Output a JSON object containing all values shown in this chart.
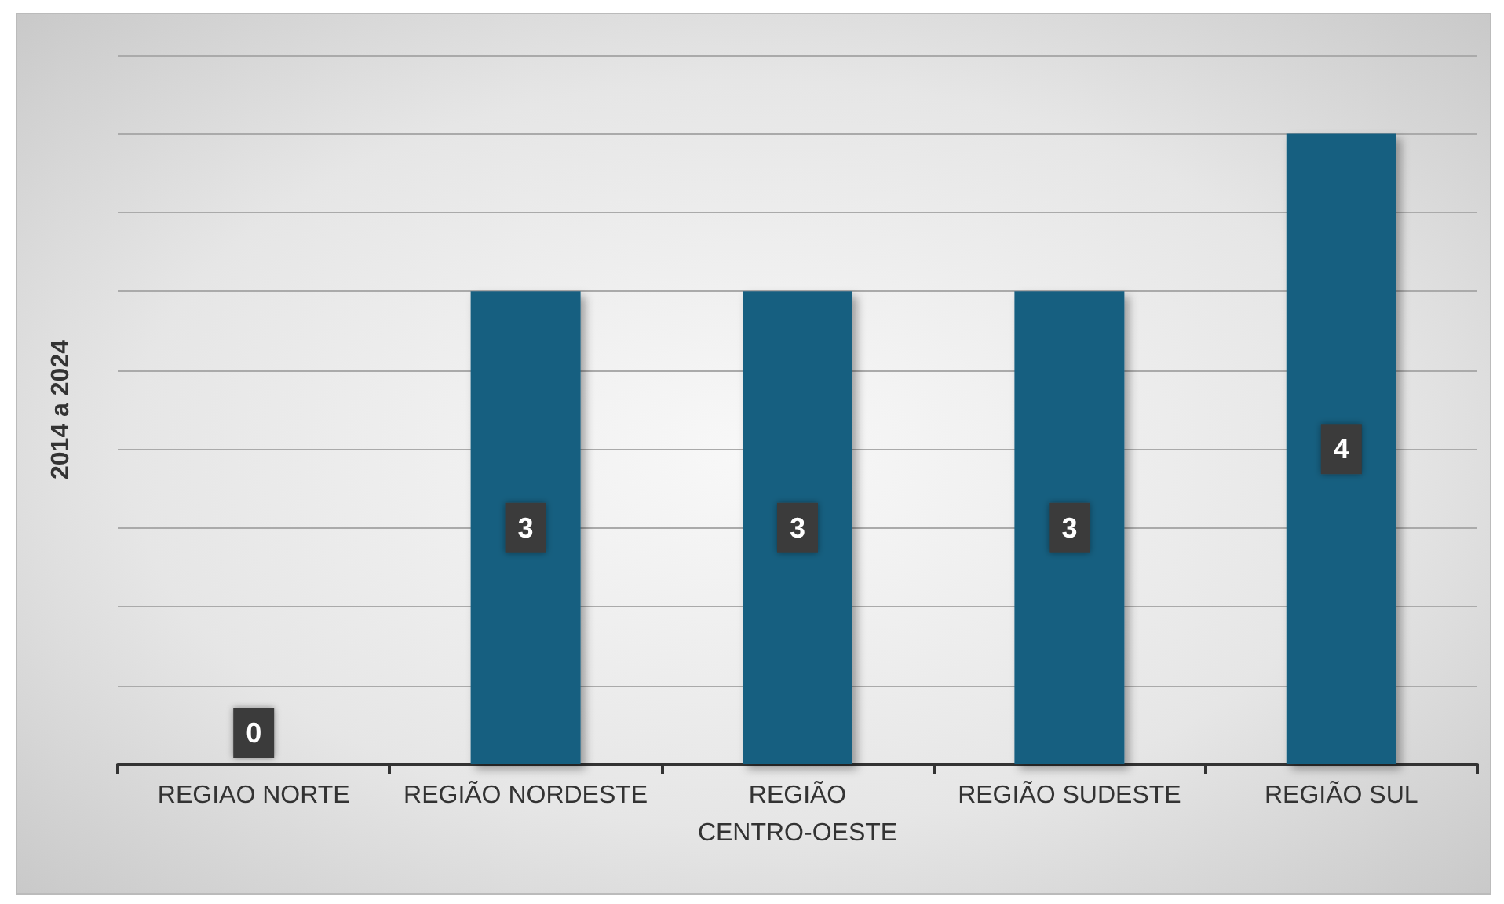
{
  "chart_data": {
    "type": "bar",
    "ylabel": "2014 a 2024",
    "categories": [
      "REGIAO NORTE",
      "REGIÃO NORDESTE",
      "REGIÃO CENTRO-OESTE",
      "REGIÃO SUDESTE",
      "REGIÃO SUL"
    ],
    "values": [
      0,
      3,
      3,
      3,
      4
    ],
    "color": "#175e80",
    "ylim": [
      0,
      4.5
    ],
    "yticks": [
      {
        "value": 0,
        "label": null
      },
      {
        "value": 0.5,
        "label": null
      },
      {
        "value": 1,
        "label": null
      },
      {
        "value": 1.5,
        "label": null
      },
      {
        "value": 2,
        "label": null
      },
      {
        "value": 2.5,
        "label": null
      },
      {
        "value": 3,
        "label": null
      },
      {
        "value": 3.5,
        "label": null
      },
      {
        "value": 4,
        "label": null
      },
      {
        "value": 4.5,
        "label": null
      }
    ],
    "grid": "y",
    "data_labels": true,
    "tick_labels": "x"
  }
}
